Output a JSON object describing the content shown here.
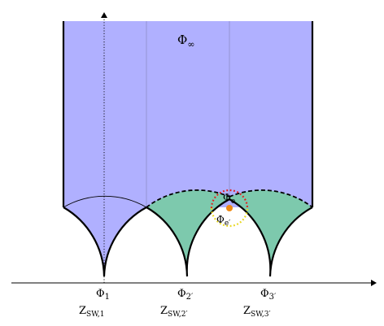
{
  "labels": {
    "phi_infinity": {
      "base": "Φ",
      "sub": "∞"
    },
    "phi_e": {
      "base": "Φ",
      "sub": "e"
    },
    "phi_e_prime": {
      "base": "Φ",
      "sub": "e′"
    },
    "cusps": [
      {
        "phi_base": "Φ",
        "phi_sub": "1",
        "z_base": "Z",
        "z_sub": "SW,1"
      },
      {
        "phi_base": "Φ",
        "phi_sub": "2′",
        "z_base": "Z",
        "z_sub": "SW,2′"
      },
      {
        "phi_base": "Φ",
        "phi_sub": "3′",
        "z_base": "Z",
        "z_sub": "SW,3′"
      }
    ]
  },
  "colors": {
    "upper_region": "#b0b0ff",
    "lower_region": "#7dc9ad",
    "boundary": "#000000",
    "guide_lines": "#8c8cc8",
    "circle_top": "#e02020",
    "circle_bottom": "#e8d820",
    "point": "#f08a14"
  }
}
